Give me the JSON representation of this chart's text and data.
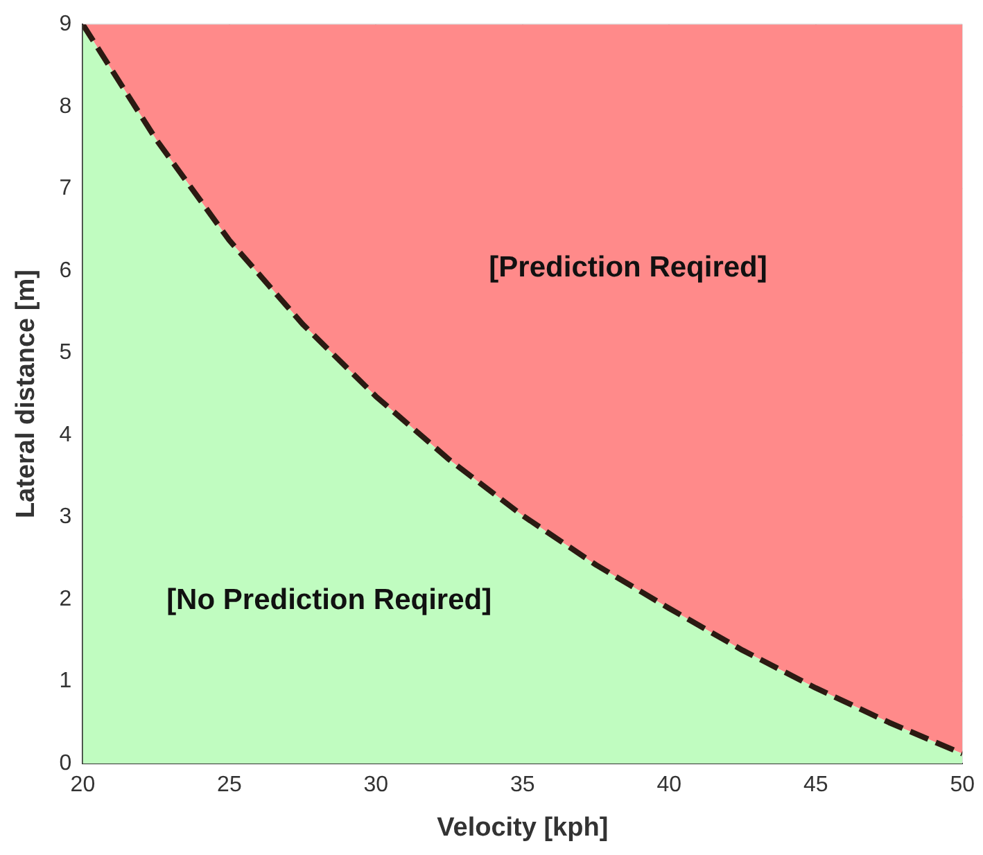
{
  "chart_data": {
    "type": "area",
    "xlabel": "Velocity [kph]",
    "ylabel": "Lateral distance [m]",
    "x": [
      20,
      22.5,
      25,
      27.5,
      30,
      32.5,
      35,
      37.5,
      40,
      42.5,
      45,
      47.5,
      50
    ],
    "series": [
      {
        "color": "#c0fcc0",
        "line_style": "dashed",
        "values": [
          9,
          7.6,
          6.37,
          5.35,
          4.47,
          3.7,
          3.02,
          2.42,
          1.89,
          1.38,
          0.92,
          0.5,
          0.12
        ]
      },
      {
        "color": "#ff8a8a",
        "values": [
          0,
          1.4,
          2.63,
          3.65,
          4.53,
          5.3,
          5.98,
          6.58,
          7.11,
          7.62,
          8.08,
          8.5,
          8.88
        ]
      }
    ],
    "xlim": [
      20,
      50
    ],
    "xticks": [
      20,
      25,
      30,
      35,
      40,
      45,
      50
    ],
    "ylim": [
      0,
      9
    ],
    "yticks": [
      0,
      1,
      2,
      3,
      4,
      5,
      6,
      7,
      8,
      9
    ],
    "stacked": true,
    "grid": true,
    "legend": false,
    "annotations": [
      "[Prediction Reqired]",
      "[No Prediction Reqired]"
    ]
  }
}
